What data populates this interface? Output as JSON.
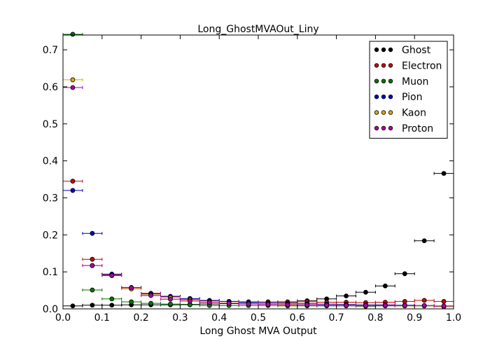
{
  "chart_data": {
    "type": "scatter",
    "title": "Long_GhostMVAOut_Liny",
    "xlabel": "Long Ghost MVA Output",
    "ylabel": "",
    "xlim": [
      0.0,
      1.0
    ],
    "ylim": [
      0.0,
      0.74
    ],
    "xticks": [
      "0.0",
      "0.1",
      "0.2",
      "0.3",
      "0.4",
      "0.5",
      "0.6",
      "0.7",
      "0.8",
      "0.9",
      "1.0"
    ],
    "yticks": [
      "0.0",
      "0.1",
      "0.2",
      "0.3",
      "0.4",
      "0.5",
      "0.6",
      "0.7"
    ],
    "grid": false,
    "legend_position": "top-right",
    "bin_half_width": 0.025,
    "x": [
      0.025,
      0.075,
      0.125,
      0.175,
      0.225,
      0.275,
      0.325,
      0.375,
      0.425,
      0.475,
      0.525,
      0.575,
      0.625,
      0.675,
      0.725,
      0.775,
      0.825,
      0.875,
      0.925,
      0.975
    ],
    "series": [
      {
        "name": "Ghost",
        "color": "#000000",
        "values": [
          0.008,
          0.01,
          0.01,
          0.011,
          0.011,
          0.011,
          0.012,
          0.013,
          0.014,
          0.015,
          0.016,
          0.018,
          0.022,
          0.027,
          0.035,
          0.045,
          0.062,
          0.095,
          0.184,
          0.366
        ]
      },
      {
        "name": "Electron",
        "color": "#cc0000",
        "values": [
          0.345,
          0.134,
          0.092,
          0.058,
          0.042,
          0.033,
          0.026,
          0.022,
          0.02,
          0.019,
          0.019,
          0.019,
          0.019,
          0.018,
          0.018,
          0.017,
          0.018,
          0.02,
          0.023,
          0.02
        ]
      },
      {
        "name": "Muon",
        "color": "#007700",
        "values": [
          0.742,
          0.051,
          0.027,
          0.019,
          0.015,
          0.013,
          0.011,
          0.009,
          0.009,
          0.009,
          0.009,
          0.008,
          0.008,
          0.008,
          0.008,
          0.007,
          0.008,
          0.008,
          0.008,
          0.007
        ]
      },
      {
        "name": "Pion",
        "color": "#0000cc",
        "values": [
          0.32,
          0.204,
          0.094,
          0.057,
          0.041,
          0.034,
          0.028,
          0.023,
          0.02,
          0.018,
          0.016,
          0.015,
          0.014,
          0.013,
          0.012,
          0.011,
          0.011,
          0.01,
          0.009,
          0.007
        ]
      },
      {
        "name": "Kaon",
        "color": "#ddaa00",
        "values": [
          0.619,
          0.117,
          0.09,
          0.054,
          0.038,
          0.03,
          0.024,
          0.019,
          0.016,
          0.014,
          0.013,
          0.012,
          0.011,
          0.01,
          0.01,
          0.009,
          0.009,
          0.008,
          0.008,
          0.006
        ]
      },
      {
        "name": "Proton",
        "color": "#aa00aa",
        "values": [
          0.598,
          0.117,
          0.09,
          0.057,
          0.036,
          0.026,
          0.021,
          0.017,
          0.015,
          0.013,
          0.012,
          0.011,
          0.011,
          0.01,
          0.009,
          0.009,
          0.009,
          0.009,
          0.009,
          0.008
        ]
      }
    ]
  }
}
